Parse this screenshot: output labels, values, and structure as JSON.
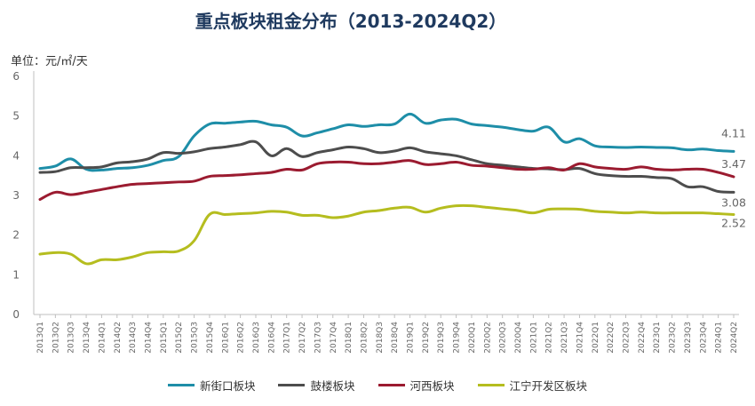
{
  "title": "重点板块租金分布（2013-2024Q2）",
  "unit_label": "单位：元/㎡/天",
  "chart_data": {
    "type": "line",
    "title": "重点板块租金分布（2013-2024Q2）",
    "ylabel": "单位：元/㎡/天",
    "ylim": [
      0,
      6
    ],
    "yticks": [
      0,
      1,
      2,
      3,
      4,
      5,
      6
    ],
    "grid": false,
    "legend_position": "bottom",
    "categories": [
      "2013Q1",
      "2013Q2",
      "2013Q3",
      "2013Q4",
      "2014Q1",
      "2014Q2",
      "2014Q3",
      "2014Q4",
      "2015Q1",
      "2015Q2",
      "2015Q3",
      "2015Q4",
      "2016Q1",
      "2016Q2",
      "2016Q3",
      "2016Q4",
      "2017Q1",
      "2017Q2",
      "2017Q3",
      "2017Q4",
      "2018Q1",
      "2018Q2",
      "2018Q3",
      "2018Q4",
      "2019Q1",
      "2019Q2",
      "2019Q3",
      "2019Q4",
      "2020Q1",
      "2020Q2",
      "2020Q3",
      "2020Q4",
      "2021Q1",
      "2021Q2",
      "2021Q3",
      "2021Q4",
      "2022Q1",
      "2022Q2",
      "2022Q3",
      "2022Q4",
      "2023Q1",
      "2023Q2",
      "2023Q3",
      "2023Q4",
      "2024Q1",
      "2024Q2"
    ],
    "series": [
      {
        "name": "新街口板块",
        "color": "#1e8ea8",
        "end_label": "4.11",
        "values": [
          3.68,
          3.74,
          3.92,
          3.66,
          3.64,
          3.68,
          3.7,
          3.76,
          3.88,
          3.98,
          4.5,
          4.8,
          4.82,
          4.85,
          4.87,
          4.78,
          4.72,
          4.5,
          4.58,
          4.68,
          4.78,
          4.74,
          4.78,
          4.8,
          5.05,
          4.82,
          4.9,
          4.92,
          4.8,
          4.76,
          4.72,
          4.66,
          4.62,
          4.72,
          4.35,
          4.43,
          4.25,
          4.22,
          4.21,
          4.22,
          4.21,
          4.2,
          4.15,
          4.17,
          4.13,
          4.11
        ]
      },
      {
        "name": "鼓楼板块",
        "color": "#4d4d4d",
        "end_label": "3.08",
        "values": [
          3.58,
          3.6,
          3.7,
          3.7,
          3.72,
          3.82,
          3.85,
          3.92,
          4.08,
          4.06,
          4.1,
          4.18,
          4.22,
          4.28,
          4.35,
          4.0,
          4.18,
          3.98,
          4.08,
          4.15,
          4.22,
          4.18,
          4.08,
          4.12,
          4.2,
          4.1,
          4.05,
          4.0,
          3.9,
          3.8,
          3.76,
          3.72,
          3.68,
          3.67,
          3.65,
          3.68,
          3.55,
          3.5,
          3.48,
          3.48,
          3.45,
          3.42,
          3.22,
          3.22,
          3.1,
          3.08
        ]
      },
      {
        "name": "河西板块",
        "color": "#9b1b30",
        "end_label": "3.47",
        "values": [
          2.9,
          3.08,
          3.02,
          3.08,
          3.15,
          3.22,
          3.28,
          3.3,
          3.32,
          3.34,
          3.36,
          3.48,
          3.5,
          3.52,
          3.55,
          3.58,
          3.66,
          3.64,
          3.8,
          3.84,
          3.84,
          3.8,
          3.8,
          3.84,
          3.88,
          3.78,
          3.8,
          3.84,
          3.76,
          3.74,
          3.7,
          3.66,
          3.66,
          3.7,
          3.64,
          3.8,
          3.72,
          3.68,
          3.66,
          3.72,
          3.66,
          3.64,
          3.66,
          3.66,
          3.58,
          3.47
        ]
      },
      {
        "name": "江宁开发区板块",
        "color": "#b5bd1f",
        "end_label": "2.52",
        "values": [
          1.52,
          1.56,
          1.52,
          1.28,
          1.38,
          1.38,
          1.45,
          1.56,
          1.58,
          1.6,
          1.86,
          2.52,
          2.52,
          2.54,
          2.56,
          2.6,
          2.58,
          2.5,
          2.5,
          2.44,
          2.48,
          2.58,
          2.62,
          2.68,
          2.7,
          2.58,
          2.68,
          2.74,
          2.74,
          2.7,
          2.66,
          2.62,
          2.56,
          2.65,
          2.66,
          2.65,
          2.6,
          2.58,
          2.56,
          2.58,
          2.56,
          2.56,
          2.56,
          2.56,
          2.54,
          2.52
        ]
      }
    ]
  }
}
